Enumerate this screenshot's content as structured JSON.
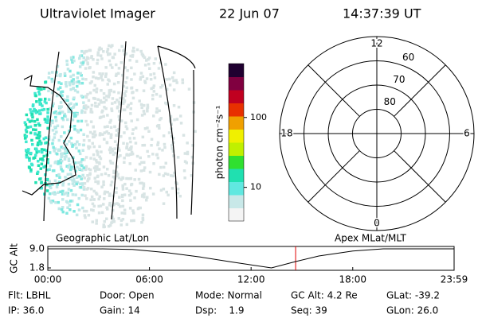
{
  "header": {
    "instrument": "Ultraviolet Imager",
    "date": "22 Jun 07",
    "time": "14:37:39 UT"
  },
  "chart_data": [
    {
      "type": "polar",
      "rlim": [
        90,
        50
      ],
      "rticks": [
        80,
        70,
        60
      ],
      "angle_ticks": [
        0,
        6,
        12,
        18
      ]
    },
    {
      "type": "colorbar",
      "label": "photon cm⁻²s⁻¹",
      "scale": "log",
      "ylim": [
        3.3,
        590
      ],
      "yticks": [
        10,
        100
      ],
      "colors": [
        "#f4f4f4",
        "#c8e8e8",
        "#60e8e0",
        "#20e0b0",
        "#30e030",
        "#c0f000",
        "#f0f000",
        "#f0a000",
        "#e83000",
        "#c00020",
        "#800040",
        "#200030"
      ]
    },
    {
      "type": "line",
      "title": "Geographic Lat/Lon",
      "subtitle": "Apex MLat/MLT",
      "ylabel": "GC Alt",
      "xlim": [
        0,
        23.983
      ],
      "xticks": [
        {
          "value": 0,
          "label": "00:00"
        },
        {
          "value": 6,
          "label": "06:00"
        },
        {
          "value": 12,
          "label": "12:00"
        },
        {
          "value": 18,
          "label": "18:00"
        },
        {
          "value": 23.983,
          "label": "23:59"
        }
      ],
      "ylim": [
        0.9,
        9.9
      ],
      "yticks": [
        {
          "value": 9,
          "label": "9.0"
        },
        {
          "value": 1.8,
          "label": "1.8"
        }
      ],
      "x": [
        0,
        3,
        5,
        7,
        9,
        11,
        13.2,
        14.63,
        16,
        18,
        19.8,
        22,
        23.983
      ],
      "values": [
        9.0,
        9.0,
        8.8,
        7.6,
        5.9,
        3.9,
        1.8,
        4.2,
        6.3,
        8.2,
        9.0,
        9.0,
        9.0
      ],
      "color": "#000000",
      "marker_x": 14.628,
      "marker_color": "#e00000"
    }
  ],
  "footer": [
    [
      "Flt: LBHL",
      "Door: Open",
      "Mode: Normal",
      "GC Alt: 4.2 Re",
      "GLat: -39.2"
    ],
    [
      "IP: 36.0",
      "Gain: 14",
      "Dsp:    1.9",
      "Seq: 39",
      "GLon: 26.0"
    ]
  ]
}
